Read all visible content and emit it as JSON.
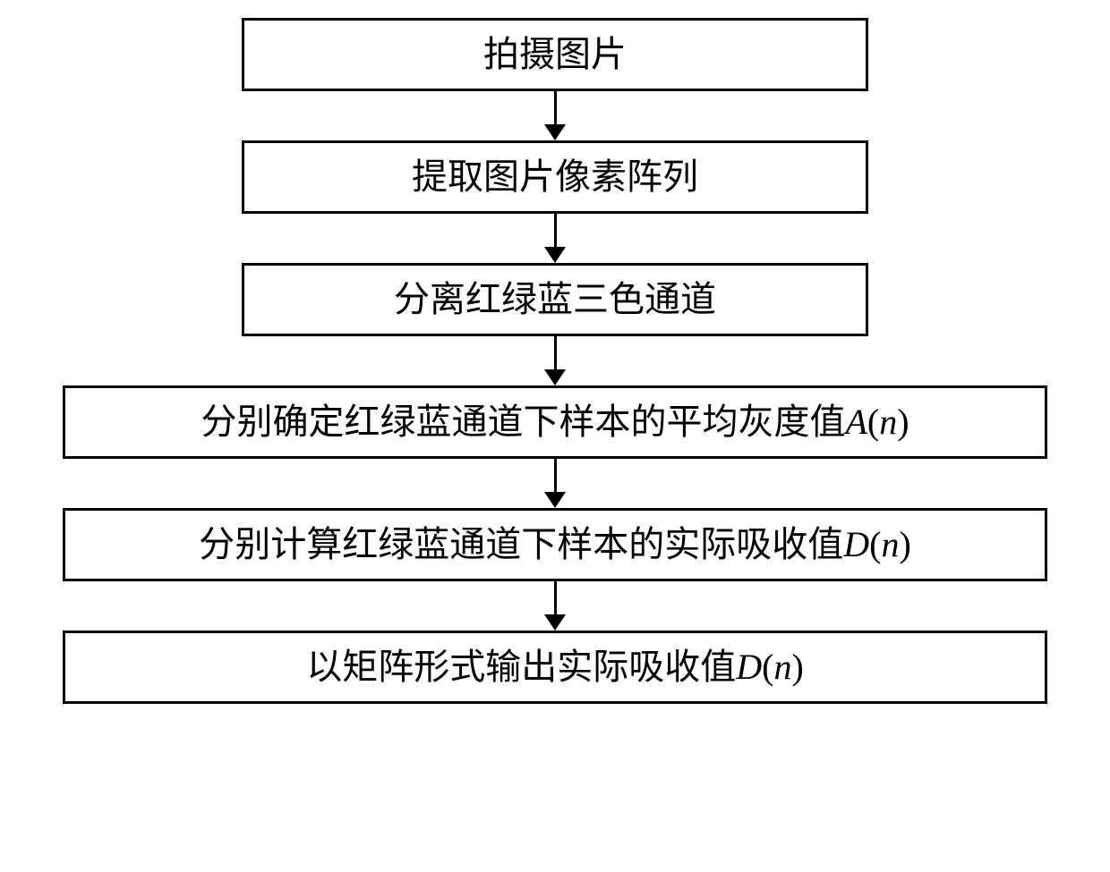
{
  "flowchart": {
    "type": "flowchart",
    "background_color": "#ffffff",
    "node_border_color": "#000000",
    "node_border_width": 3,
    "arrow_color": "#000000",
    "font_size": 40,
    "font_family": "SimSun",
    "box_narrow_width": 700,
    "box_wide_width": 1100,
    "arrow_height": 55,
    "nodes": [
      {
        "id": "n1",
        "label_plain": "拍摄图片",
        "width": "narrow"
      },
      {
        "id": "n2",
        "label_plain": "提取图片像素阵列",
        "width": "narrow"
      },
      {
        "id": "n3",
        "label_plain": "分离红绿蓝三色通道",
        "width": "narrow"
      },
      {
        "id": "n4",
        "label_pre": "分别确定红绿蓝通道下样本的平均灰度值",
        "var": "A",
        "arg": "n",
        "width": "wide"
      },
      {
        "id": "n5",
        "label_pre": "分别计算红绿蓝通道下样本的实际吸收值",
        "var": "D",
        "arg": "n",
        "width": "wide"
      },
      {
        "id": "n6",
        "label_pre": "以矩阵形式输出实际吸收值",
        "var": "D",
        "arg": "n",
        "width": "wide"
      }
    ],
    "edges": [
      {
        "from": "n1",
        "to": "n2"
      },
      {
        "from": "n2",
        "to": "n3"
      },
      {
        "from": "n3",
        "to": "n4"
      },
      {
        "from": "n4",
        "to": "n5"
      },
      {
        "from": "n5",
        "to": "n6"
      }
    ]
  }
}
